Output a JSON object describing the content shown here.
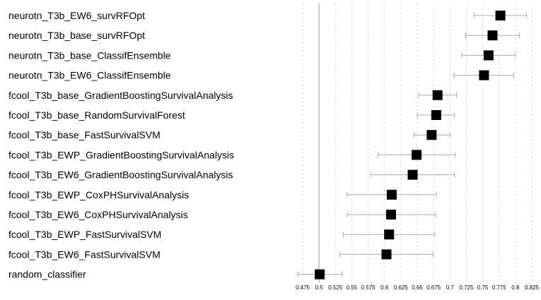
{
  "chart_data": {
    "type": "scatter",
    "subtype": "forest-plot",
    "title": "",
    "xlabel": "",
    "ylabel": "",
    "xlim": [
      0.46,
      0.83
    ],
    "xticks": [
      0.475,
      0.5,
      0.525,
      0.55,
      0.575,
      0.6,
      0.625,
      0.65,
      0.675,
      0.7,
      0.725,
      0.75,
      0.775,
      0.8,
      0.825
    ],
    "xtick_labels": [
      "0.475",
      "0.5",
      "0.525",
      "0.55",
      "0.575",
      "0.6",
      "0.625",
      "0.65",
      "0.675",
      "0.7",
      "0.725",
      "0.75",
      "0.775",
      "0.8",
      "0.825"
    ],
    "reference_line": 0.5,
    "grid": "vertical-dashed",
    "rows": [
      {
        "label": "neurotn_T3b_EW6_survRFOpt",
        "value": 0.777,
        "low": 0.737,
        "high": 0.817
      },
      {
        "label": "neurotn_T3b_base_survRFOpt",
        "value": 0.765,
        "low": 0.724,
        "high": 0.806
      },
      {
        "label": "neurotn_T3b_base_ClassifEnsemble",
        "value": 0.759,
        "low": 0.718,
        "high": 0.8
      },
      {
        "label": "neurotn_T3b_EW6_ClassifEnsemble",
        "value": 0.752,
        "low": 0.706,
        "high": 0.797
      },
      {
        "label": "fcool_T3b_base_GradientBoostingSurvivalAnalysis",
        "value": 0.681,
        "low": 0.652,
        "high": 0.71
      },
      {
        "label": "fcool_T3b_base_RandomSurvivalForest",
        "value": 0.679,
        "low": 0.65,
        "high": 0.707
      },
      {
        "label": "fcool_T3b_base_FastSurvivalSVM",
        "value": 0.672,
        "low": 0.645,
        "high": 0.7
      },
      {
        "label": "fcool_T3b_EWP_GradientBoostingSurvivalAnalysis",
        "value": 0.649,
        "low": 0.59,
        "high": 0.708
      },
      {
        "label": "fcool_T3b_EW6_GradientBoostingSurvivalAnalysis",
        "value": 0.643,
        "low": 0.579,
        "high": 0.707
      },
      {
        "label": "fcool_T3b_EWP_CoxPHSurvivalAnalysis",
        "value": 0.611,
        "low": 0.543,
        "high": 0.679
      },
      {
        "label": "fcool_T3b_EW6_CoxPHSurvivalAnalysis",
        "value": 0.61,
        "low": 0.543,
        "high": 0.678
      },
      {
        "label": "fcool_T3b_EWP_FastSurvivalSVM",
        "value": 0.607,
        "low": 0.537,
        "high": 0.677
      },
      {
        "label": "fcool_T3b_EW6_FastSurvivalSVM",
        "value": 0.603,
        "low": 0.532,
        "high": 0.674
      },
      {
        "label": "random_classifier",
        "value": 0.501,
        "low": 0.468,
        "high": 0.535
      }
    ],
    "colors": {
      "marker": "#000000",
      "whisker": "#a9a9a9",
      "grid": "#d0d0d0",
      "reference_line": "#a0a0a0",
      "text": "#000000"
    }
  }
}
